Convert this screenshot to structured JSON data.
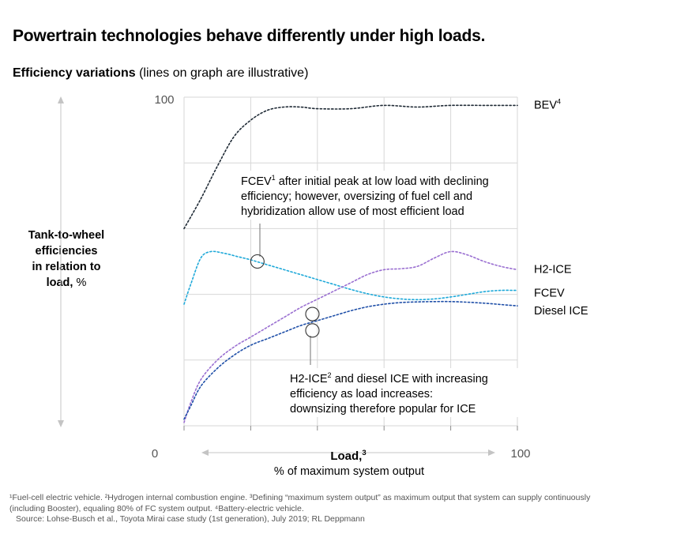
{
  "title": "Powertrain technologies behave differently under high loads.",
  "subtitle_bold": "Efficiency variations",
  "subtitle_rest": " (lines on graph are illustrative)",
  "ylabel": {
    "line1": "Tank-to-wheel",
    "line2": "efficiencies",
    "line3": "in relation to",
    "line4_bold": "load,",
    "line4_rest": " %"
  },
  "xaxis": {
    "min_label": "0",
    "max_label": "100",
    "title": "Load,",
    "title_sup": "3",
    "subtitle": "% of maximum system output"
  },
  "yaxis": {
    "top_label": "100"
  },
  "annotations": {
    "fcev": {
      "line1_pre": "FCEV",
      "line1_sup": "1",
      "line1_post": " after initial peak at low load with declining",
      "line2": "efficiency; however, oversizing of fuel cell and",
      "line3": "hybridization allow use of most efficient load"
    },
    "ice": {
      "line1_pre": "H2-ICE",
      "line1_sup": "2",
      "line1_post": " and diesel ICE with increasing",
      "line2": "efficiency as load increases:",
      "line3": "downsizing therefore popular for ICE"
    }
  },
  "footnotes": {
    "line1": "¹Fuel-cell electric vehicle. ²Hydrogen internal combustion engine. ³Defining “maximum system output” as maximum output that system can supply continuously",
    "line2": " (including Booster), equaling 80% of FC system output. ⁴Battery-electric vehicle.",
    "line3": "Source: Lohse-Busch et al., Toyota Mirai case study (1st generation), July 2019; RL Deppmann"
  },
  "colors": {
    "bev": "#1f2a35",
    "fcev": "#1fa9d9",
    "h2ice": "#9a6fd1",
    "diesel": "#1f4fa8",
    "grid": "#d7d7d7",
    "arrow": "#bdbdbd"
  },
  "chart_data": {
    "type": "line",
    "title": "Efficiency variations",
    "xlabel": "Load, % of maximum system output",
    "ylabel": "Tank-to-wheel efficiencies in relation to load, %",
    "xlim": [
      0,
      100
    ],
    "ylim": [
      0,
      100
    ],
    "grid": true,
    "series": [
      {
        "name": "BEV",
        "label_sup": "4",
        "color": "#1f2a35",
        "x": [
          0,
          5,
          10,
          15,
          20,
          25,
          30,
          35,
          40,
          50,
          60,
          70,
          80,
          90,
          100
        ],
        "y": [
          60,
          69,
          79,
          88,
          93,
          96,
          97,
          97,
          96.5,
          96.5,
          97.5,
          97,
          97.5,
          97.5,
          97.5
        ]
      },
      {
        "name": "FCEV",
        "label_sup": "",
        "color": "#1fa9d9",
        "x": [
          0,
          2,
          5,
          8,
          12,
          16,
          20,
          25,
          30,
          35,
          40,
          45,
          50,
          55,
          60,
          65,
          70,
          75,
          80,
          85,
          90,
          95,
          100
        ],
        "y": [
          37,
          43,
          51,
          53,
          52.5,
          51.5,
          50.5,
          49,
          47.5,
          46,
          44.5,
          43,
          41.5,
          40.2,
          39.2,
          38.6,
          38.4,
          38.6,
          39.2,
          40,
          40.8,
          41.2,
          41.2
        ]
      },
      {
        "name": "H2-ICE",
        "label_sup": "",
        "color": "#9a6fd1",
        "x": [
          0,
          2,
          5,
          10,
          15,
          20,
          25,
          30,
          35,
          40,
          45,
          50,
          55,
          60,
          65,
          70,
          75,
          80,
          85,
          90,
          95,
          100
        ],
        "y": [
          1,
          7,
          14,
          20,
          24,
          27,
          30,
          33,
          36,
          38.5,
          41,
          43.5,
          46,
          47.5,
          47.8,
          48.5,
          51,
          53,
          52,
          50,
          48.5,
          47.5
        ]
      },
      {
        "name": "Diesel ICE",
        "label_sup": "",
        "color": "#1f4fa8",
        "x": [
          0,
          2,
          5,
          10,
          15,
          20,
          25,
          30,
          35,
          40,
          45,
          50,
          55,
          60,
          65,
          70,
          75,
          80,
          85,
          90,
          95,
          100
        ],
        "y": [
          2,
          6,
          12,
          17.5,
          21.5,
          24.5,
          26.5,
          28.5,
          30.5,
          32,
          33.5,
          35,
          36.2,
          37,
          37.5,
          37.7,
          37.8,
          37.8,
          37.6,
          37.3,
          36.9,
          36.5
        ]
      }
    ],
    "markers": [
      {
        "series": "FCEV",
        "x": 22,
        "y": 50
      },
      {
        "series": "H2-ICE",
        "x": 38.5,
        "y": 34
      },
      {
        "series": "Diesel ICE",
        "x": 38.5,
        "y": 29
      }
    ]
  }
}
